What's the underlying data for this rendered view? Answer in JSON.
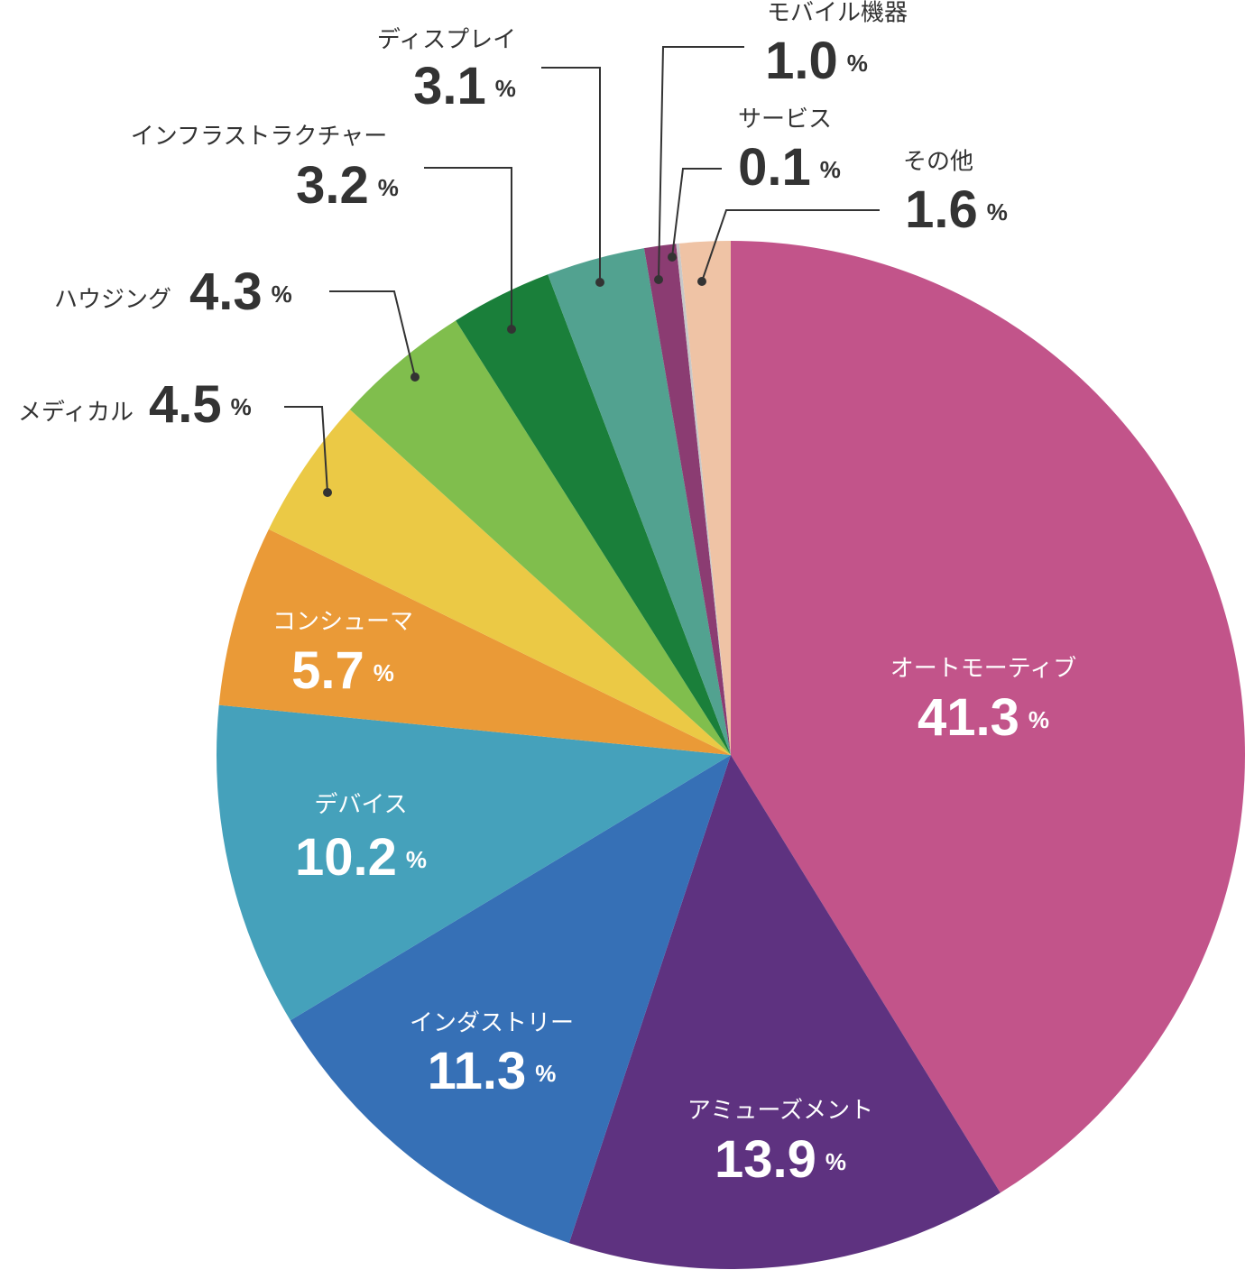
{
  "chart_data": {
    "type": "pie",
    "categories": [
      "オートモーティブ",
      "アミューズメント",
      "インダストリー",
      "デバイス",
      "コンシューマ",
      "メディカル",
      "ハウジング",
      "インフラストラクチャー",
      "ディスプレイ",
      "モバイル機器",
      "サービス",
      "その他"
    ],
    "values": [
      41.3,
      13.9,
      11.3,
      10.2,
      5.7,
      4.5,
      4.3,
      3.2,
      3.1,
      1.0,
      0.1,
      1.6
    ],
    "value_labels": [
      "41.3",
      "13.9",
      "11.3",
      "10.2",
      "5.7",
      "4.5",
      "4.3",
      "3.2",
      "3.1",
      "1.0",
      "0.1",
      "1.6"
    ],
    "value_unit": "%",
    "colors": [
      "#c2548a",
      "#5e3280",
      "#3670b6",
      "#45a1bb",
      "#ea9a37",
      "#ebc945",
      "#80be4d",
      "#1a7f3a",
      "#52a290",
      "#8b3c72",
      "#c8c8c8",
      "#efc3a5"
    ]
  }
}
